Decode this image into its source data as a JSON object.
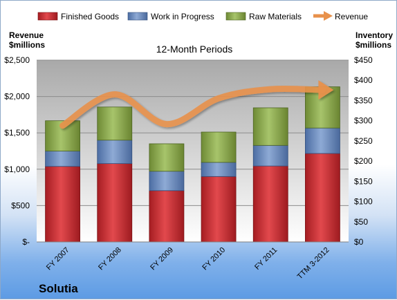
{
  "chart_data": {
    "type": "bar",
    "title": "12-Month Periods",
    "company": "Solutia",
    "categories": [
      "FY 2007",
      "FY 2008",
      "FY 2009",
      "FY 2010",
      "FY 2011",
      "TTM 3-2012"
    ],
    "series": [
      {
        "name": "Finished Goods",
        "axis": "right",
        "stack": true,
        "color": "#c0272d",
        "values": [
          187,
          194,
          127,
          162,
          188,
          219
        ]
      },
      {
        "name": "Work in Progress",
        "axis": "right",
        "stack": true,
        "color": "#5b7eb5",
        "values": [
          38,
          58,
          48,
          35,
          51,
          63
        ]
      },
      {
        "name": "Raw Materials",
        "axis": "right",
        "stack": true,
        "color": "#7e9a3f",
        "values": [
          75,
          82,
          68,
          75,
          93,
          102
        ]
      },
      {
        "name": "Revenue",
        "axis": "left",
        "type": "line",
        "color": "#e8914b",
        "values": [
          1600,
          2030,
          1620,
          1975,
          2100,
          2090
        ]
      }
    ],
    "left_axis": {
      "label": "Revenue\n$millions",
      "ylim": [
        0,
        2500
      ],
      "ticks": [
        0,
        500,
        1000,
        1500,
        2000,
        2500
      ],
      "tick_labels": [
        "$-",
        "$500",
        "$1,000",
        "$1,500",
        "$2,000",
        "$2,500"
      ]
    },
    "right_axis": {
      "label": "Inventory\n$millions",
      "ylim": [
        0,
        450
      ],
      "ticks": [
        0,
        50,
        100,
        150,
        200,
        250,
        300,
        350,
        400,
        450
      ],
      "tick_labels": [
        "$0",
        "$50",
        "$100",
        "$150",
        "$200",
        "$250",
        "$300",
        "$350",
        "$400",
        "$450"
      ]
    },
    "legend_position": "top",
    "grid": true
  }
}
